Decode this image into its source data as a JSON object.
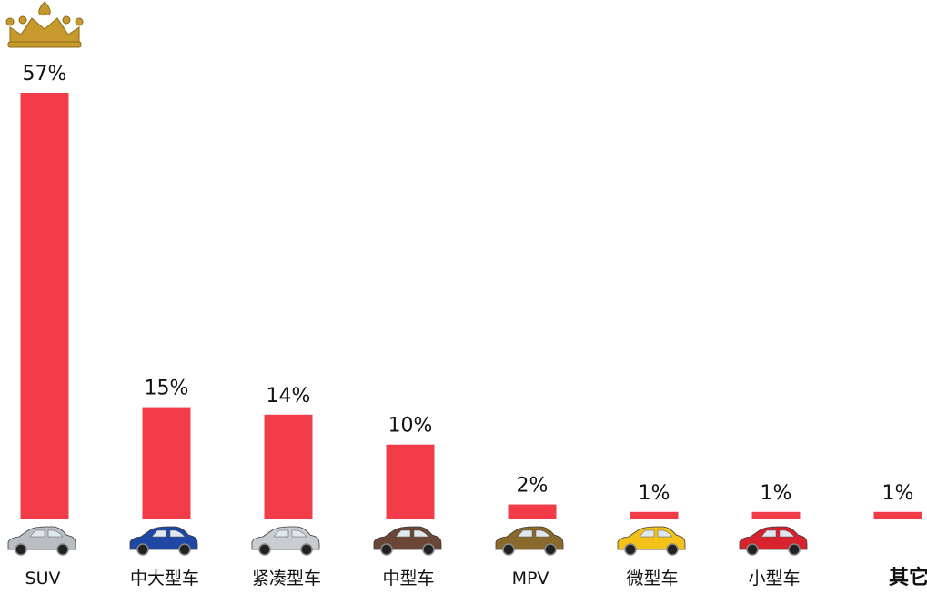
{
  "colors": {
    "bar": "#f23c4a",
    "text": "#111111",
    "crown": "#c79a2e",
    "car_colors": [
      "#b9bec4",
      "#1f47a6",
      "#c9ccd0",
      "#6b4636",
      "#8a6a2a",
      "#f2c21b",
      "#d8232f"
    ]
  },
  "icons": {
    "crown": "crown-icon",
    "car": "car-icon"
  },
  "chart_data": {
    "type": "bar",
    "title": "",
    "xlabel": "",
    "ylabel": "",
    "ylim": [
      0,
      57
    ],
    "categories": [
      "SUV",
      "中大型车",
      "紧凑型车",
      "中型车",
      "MPV",
      "微型车",
      "小型车",
      "其它"
    ],
    "values": [
      57,
      15,
      14,
      10,
      2,
      1,
      1,
      1
    ],
    "value_labels": [
      "57%",
      "15%",
      "14%",
      "10%",
      "2%",
      "1%",
      "1%",
      "1%"
    ],
    "grid": false,
    "legend": "none",
    "top_category_marker": "crown-icon"
  }
}
